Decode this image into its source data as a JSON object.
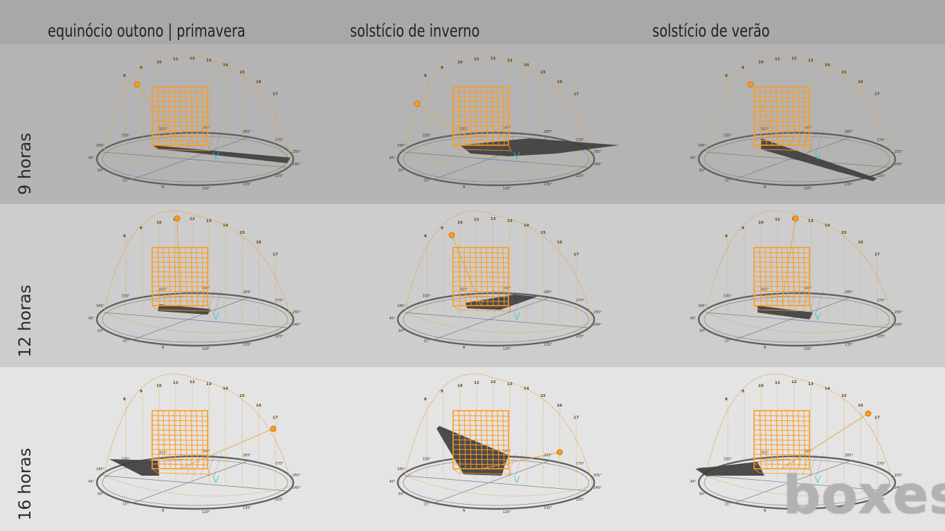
{
  "columns": [
    "equinócio outono | primavera",
    "solstício de inverno",
    "solstício de verão"
  ],
  "rows": [
    "9 horas",
    "12 horas",
    "16 horas"
  ],
  "logo": "boxes",
  "compass": {
    "labels": [
      "N",
      "15°",
      "30°",
      "45°",
      "345°",
      "330°",
      "315°",
      "300°",
      "285°",
      "270°",
      "255°",
      "240°",
      "225°",
      "135°",
      "120°"
    ]
  },
  "hour_marks": [
    "8",
    "9",
    "10",
    "11",
    "12",
    "13",
    "14",
    "15",
    "16",
    "17"
  ],
  "colors": {
    "building": "#ff9a1f",
    "sun_path": "#e0a33a",
    "shadow": "#3f3f3f",
    "row1_bg": "#b4b4b4",
    "row2_bg": "#cdcdcd",
    "row3_bg": "#e4e4e4"
  }
}
